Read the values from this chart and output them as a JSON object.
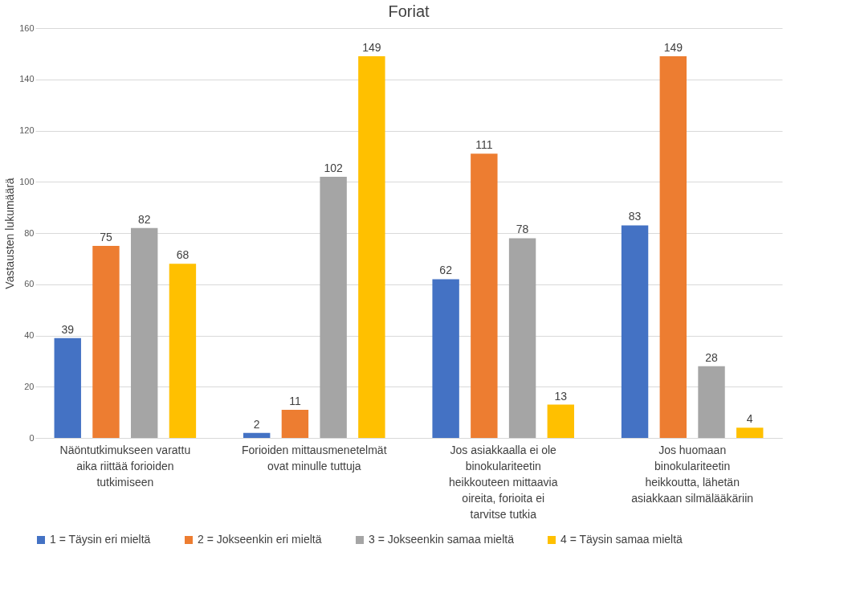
{
  "chart_data": {
    "type": "bar",
    "title": "Foriat",
    "ylabel": "Vastausten lukumäärä",
    "categories": [
      "Näöntutkimukseen varattu aika riittää forioiden tutkimiseen",
      "Forioiden mittausmenetelmät ovat minulle tuttuja",
      "Jos asiakkaalla ei ole binokulariteetin heikkouteen mittaavia oireita, forioita ei tarvitse tutkia",
      "Jos huomaan binokulariteetin heikkoutta, lähetän asiakkaan silmälääkäriin"
    ],
    "series": [
      {
        "name": "1 = Täysin eri mieltä",
        "color": "#4472c4",
        "values": [
          39,
          2,
          62,
          83
        ]
      },
      {
        "name": "2 = Jokseenkin eri mieltä",
        "color": "#ed7d31",
        "values": [
          75,
          11,
          111,
          149
        ]
      },
      {
        "name": "3 = Jokseenkin samaa mieltä",
        "color": "#a5a5a5",
        "values": [
          82,
          102,
          78,
          28
        ]
      },
      {
        "name": "4 = Täysin samaa mieltä",
        "color": "#ffc000",
        "values": [
          68,
          149,
          13,
          4
        ]
      }
    ],
    "ylim": [
      0,
      160
    ],
    "yticks": [
      0,
      20,
      40,
      60,
      80,
      100,
      120,
      140,
      160
    ],
    "grid": "y",
    "legend": "bottom",
    "data_labels": true
  }
}
